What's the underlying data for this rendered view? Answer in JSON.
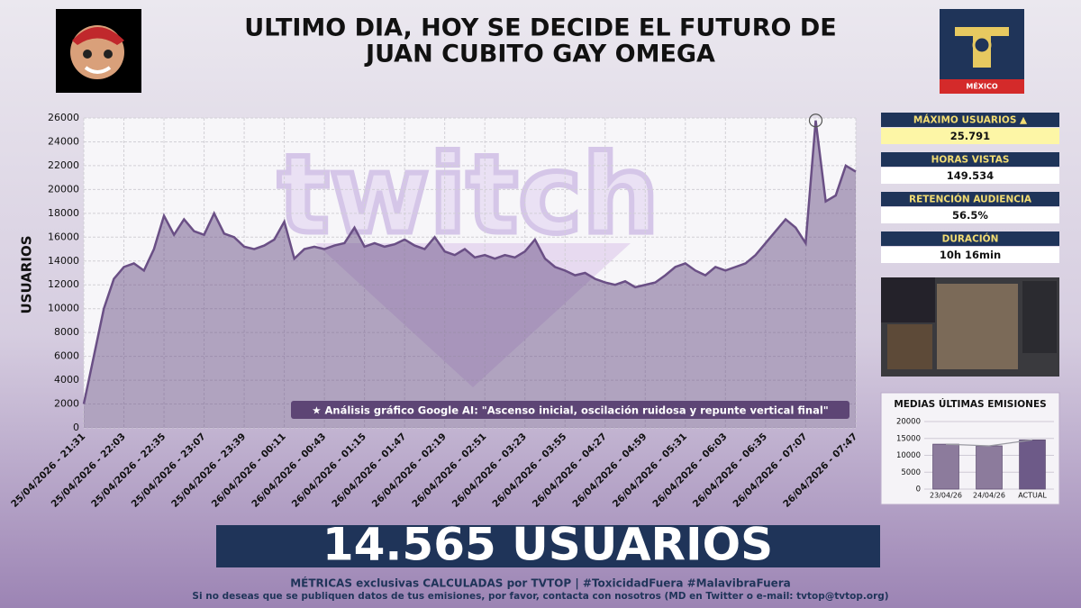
{
  "header": {
    "title_lines": [
      "ULTIMO DIA, HOY SE DECIDE EL FUTURO DE",
      "JUAN CUBITO GAY OMEGA"
    ],
    "logo_label": "MÉXICO"
  },
  "chart_data": [
    {
      "type": "area",
      "watermark": "twitch",
      "y_label": "USUARIOS",
      "annotation": "★ Análisis gráfico Google AI: \"Ascenso inicial, oscilación ruidosa y repunte vertical final\"",
      "categories": [
        "25/04/2026 - 21:31",
        null,
        null,
        null,
        "25/04/2026 - 22:03",
        null,
        null,
        null,
        "25/04/2026 - 22:35",
        null,
        null,
        null,
        "25/04/2026 - 23:07",
        null,
        null,
        null,
        "25/04/2026 - 23:39",
        null,
        null,
        null,
        "26/04/2026 - 00:11",
        null,
        null,
        null,
        "26/04/2026 - 00:43",
        null,
        null,
        null,
        "26/04/2026 - 01:15",
        null,
        null,
        null,
        "26/04/2026 - 01:47",
        null,
        null,
        null,
        "26/04/2026 - 02:19",
        null,
        null,
        null,
        "26/04/2026 - 02:51",
        null,
        null,
        null,
        "26/04/2026 - 03:23",
        null,
        null,
        null,
        "26/04/2026 - 03:55",
        null,
        null,
        null,
        "26/04/2026 - 04:27",
        null,
        null,
        null,
        "26/04/2026 - 04:59",
        null,
        null,
        null,
        "26/04/2026 - 05:31",
        null,
        null,
        null,
        "26/04/2026 - 06:03",
        null,
        null,
        null,
        "26/04/2026 - 06:35",
        null,
        null,
        null,
        "26/04/2026 - 07:07",
        null,
        null,
        null,
        null,
        "26/04/2026 - 07:47"
      ],
      "values": [
        2000,
        6000,
        10000,
        12500,
        13500,
        13800,
        13200,
        15000,
        17800,
        16200,
        17500,
        16500,
        16200,
        18000,
        16300,
        16000,
        15200,
        15000,
        15300,
        15800,
        17300,
        14200,
        15000,
        15200,
        15000,
        15300,
        15500,
        16800,
        15200,
        15500,
        15200,
        15400,
        15800,
        15300,
        15000,
        16000,
        14800,
        14500,
        15000,
        14300,
        14500,
        14200,
        14500,
        14300,
        14800,
        15800,
        14200,
        13500,
        13200,
        12800,
        13000,
        12500,
        12200,
        12000,
        12300,
        11800,
        12000,
        12200,
        12800,
        13500,
        13800,
        13200,
        12800,
        13500,
        13200,
        13500,
        13800,
        14500,
        15500,
        16500,
        17500,
        16800,
        15500,
        25791,
        19000,
        19500,
        22000,
        21500
      ],
      "color": "#6a4f85",
      "max_index": 73,
      "ylim": [
        0,
        26000
      ],
      "yticks": [
        0,
        2000,
        4000,
        6000,
        8000,
        10000,
        12000,
        14000,
        16000,
        18000,
        20000,
        22000,
        24000,
        26000
      ],
      "grid": true
    },
    {
      "type": "bar",
      "title": "MEDIAS ÚLTIMAS EMISIONES",
      "categories": [
        "23/04/26",
        "24/04/26",
        "ACTUAL"
      ],
      "values": [
        13300,
        12800,
        14565
      ],
      "colors": [
        "#8c7b9c",
        "#8c7b9c",
        "#6d5a88"
      ],
      "ylim": [
        0,
        20000
      ],
      "yticks": [
        0,
        5000,
        10000,
        15000,
        20000
      ],
      "grid": true
    }
  ],
  "stats": [
    {
      "label": "MÁXIMO USUARIOS ▲",
      "value": "25.791"
    },
    {
      "label": "HORAS VISTAS",
      "value": "149.534"
    },
    {
      "label": "RETENCIÓN AUDIENCIA",
      "value": "56.5%"
    },
    {
      "label": "DURACIÓN",
      "value": "10h 16min"
    }
  ],
  "banner": "14.565 USUARIOS",
  "footer": [
    "MÉTRICAS exclusivas CALCULADAS por TVTOP | #ToxicidadFuera #MalavibraFuera",
    "Si no deseas que se publiquen datos de tus emisiones, por favor, contacta con nosotros (MD en Twitter o e-mail: tvtop@tvtop.org)"
  ]
}
